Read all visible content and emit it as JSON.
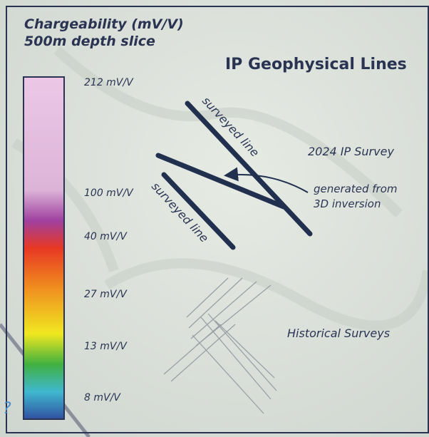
{
  "legend": {
    "title": "Chargeability (mV/V)",
    "subtitle": "500m depth slice",
    "colorbar_labels": [
      "212 mV/V",
      "100 mV/V",
      "40 mV/V",
      "27 mV/V",
      "13 mV/V",
      "8 mV/V"
    ]
  },
  "layer": {
    "title": "IP Geophysical Lines",
    "line_labels": [
      "surveyed line",
      "surveyed line"
    ],
    "survey_2024": "2024 IP Survey",
    "arrow_note": [
      "generated from",
      "3D inversion"
    ],
    "historical": "Historical Surveys"
  },
  "annotation": "?"
}
